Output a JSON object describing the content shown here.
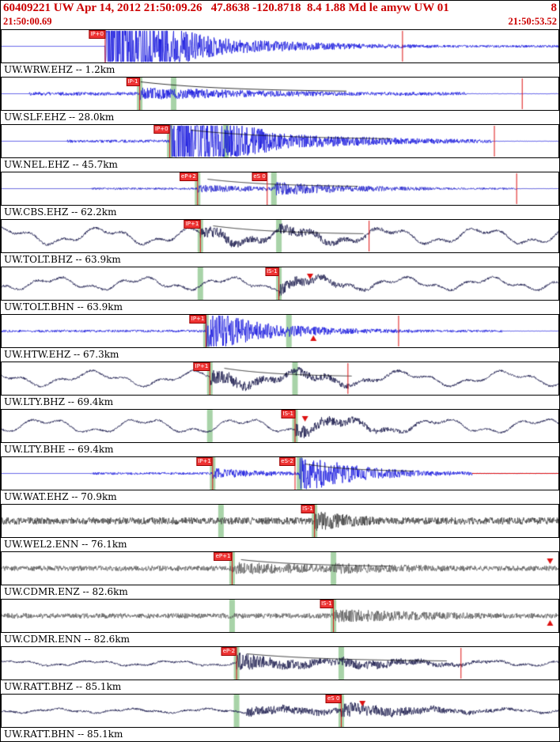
{
  "header": {
    "title": "60409221 UW Apr 14, 2012 21:50:09.26   47.8638 -120.8718  8.4 1.88 Md le amyw UW 01",
    "page": "8",
    "start_time": "21:50:00.69",
    "end_time": "21:50:53.52"
  },
  "colors": {
    "header_text": "#cc0000",
    "pick_red": "#dd1111",
    "flag_bg": "#ee3333",
    "band_green": "rgba(158,206,158,0.9)",
    "trace_blue": "#1515dd",
    "trace_navy": "#1b1b4d",
    "trace_gray": "#5a5a5a"
  },
  "traces": [
    {
      "label": "UW.WRW.EHZ -- 1.2km",
      "color": "#1515dd",
      "seed": 11,
      "wave": {
        "flat": 0.185,
        "noise": 1.5,
        "bursts": [
          {
            "x": 0.186,
            "a": 90,
            "d": 0.1
          },
          {
            "x": 0.2,
            "a": 25,
            "d": 0.22
          }
        ]
      },
      "picks": [
        {
          "x": 0.186,
          "label": "IP+0"
        }
      ],
      "red_vlines": [
        0.72
      ],
      "bands": []
    },
    {
      "label": "UW.SLF.EHZ -- 28.0km",
      "color": "#1515dd",
      "seed": 22,
      "wave": {
        "flat": 0.05,
        "noise": 2.2,
        "end": 0.835,
        "bursts": [
          {
            "x": 0.248,
            "a": 8,
            "d": 0.3
          },
          {
            "x": 0.31,
            "a": 7,
            "d": 0.3
          }
        ]
      },
      "picks": [
        {
          "x": 0.248,
          "label": "IP-1"
        }
      ],
      "red_vlines": [
        0.935
      ],
      "coda": {
        "from": 0.25,
        "to": 0.62,
        "amp": 13
      },
      "bands": [
        0.248,
        0.309
      ]
    },
    {
      "label": "UW.NEL.EHZ -- 45.7km",
      "color": "#1515dd",
      "seed": 33,
      "wave": {
        "flat": 0.118,
        "noise": 1.8,
        "end": 0.88,
        "bursts": [
          {
            "x": 0.302,
            "a": 70,
            "d": 0.11
          },
          {
            "x": 0.32,
            "a": 20,
            "d": 0.25
          }
        ]
      },
      "picks": [
        {
          "x": 0.302,
          "label": "IP+0"
        }
      ],
      "red_vlines": [
        0.885
      ],
      "coda": {
        "from": 0.34,
        "to": 0.7,
        "amp": 12
      },
      "bands": [
        0.302,
        0.403
      ]
    },
    {
      "label": "UW.CBS.EHZ -- 62.2km",
      "color": "#2020cc",
      "seed": 44,
      "wave": {
        "flat": 0.16,
        "noise": 1.2,
        "end": 0.925,
        "bursts": [
          {
            "x": 0.352,
            "a": 5,
            "d": 0.2
          },
          {
            "x": 0.49,
            "a": 9,
            "d": 0.18
          }
        ]
      },
      "picks": [
        {
          "x": 0.352,
          "label": "eP+2"
        },
        {
          "x": 0.477,
          "label": "eS 0"
        }
      ],
      "red_vlines": [
        0.925
      ],
      "coda": {
        "from": 0.37,
        "to": 0.64,
        "amp": 10
      },
      "bands": [
        0.352,
        0.489
      ]
    },
    {
      "label": "UW.TOLT.BHZ -- 63.9km",
      "color": "#1b1b4d",
      "seed": 55,
      "wave": {
        "flat": 0,
        "noise": 1.5,
        "lf": {
          "a": 8,
          "p": 120,
          "ph": 1.2
        },
        "bursts": [
          {
            "x": 0.357,
            "a": 9,
            "d": 0.12
          },
          {
            "x": 0.5,
            "a": 7,
            "d": 0.15
          }
        ]
      },
      "picks": [
        {
          "x": 0.357,
          "label": "IP+1"
        }
      ],
      "red_vlines": [
        0.66
      ],
      "coda": {
        "from": 0.38,
        "to": 0.65,
        "amp": 11
      },
      "bands": [
        0.357,
        0.498
      ]
    },
    {
      "label": "UW.TOLT.BHN -- 63.9km",
      "color": "#1b1b4d",
      "seed": 66,
      "wave": {
        "flat": 0,
        "noise": 1.4,
        "lf": {
          "a": 6,
          "p": 110,
          "ph": 4.0
        },
        "bursts": [
          {
            "x": 0.498,
            "a": 8,
            "d": 0.12
          }
        ]
      },
      "picks": [
        {
          "x": 0.498,
          "label": "IS-1"
        }
      ],
      "markers": [
        {
          "x": 0.554,
          "dir": "down"
        }
      ],
      "bands": [
        0.357,
        0.498
      ]
    },
    {
      "label": "UW.HTW.EHZ -- 67.3km",
      "color": "#1515dd",
      "seed": 77,
      "wave": {
        "flat": 0,
        "noise": 1.5,
        "end": 0.9,
        "bursts": [
          {
            "x": 0.367,
            "a": 30,
            "d": 0.1
          },
          {
            "x": 0.38,
            "a": 12,
            "d": 0.2
          },
          {
            "x": 0.516,
            "a": 8,
            "d": 0.12
          }
        ]
      },
      "picks": [
        {
          "x": 0.367,
          "label": "IP+1"
        }
      ],
      "red_vlines": [
        0.713
      ],
      "markers": [
        {
          "x": 0.56,
          "dir": "up"
        }
      ],
      "bands": [
        0.367,
        0.516
      ]
    },
    {
      "label": "UW.LTY.BHZ -- 69.4km",
      "color": "#1b1b4d",
      "seed": 88,
      "wave": {
        "flat": 0,
        "noise": 1.3,
        "lf": {
          "a": 7,
          "p": 130,
          "ph": 2.2
        },
        "bursts": [
          {
            "x": 0.374,
            "a": 10,
            "d": 0.13
          },
          {
            "x": 0.527,
            "a": 6,
            "d": 0.15
          }
        ]
      },
      "picks": [
        {
          "x": 0.374,
          "label": "IP+1"
        }
      ],
      "red_vlines": [
        0.622
      ],
      "coda": {
        "from": 0.4,
        "to": 0.63,
        "amp": 11
      },
      "bands": [
        0.374,
        0.527
      ]
    },
    {
      "label": "UW.LTY.BHE -- 69.4km",
      "color": "#1b1b4d",
      "seed": 99,
      "wave": {
        "flat": 0,
        "noise": 1.2,
        "lf": {
          "a": 7,
          "p": 125,
          "ph": 5.1
        },
        "bursts": [
          {
            "x": 0.527,
            "a": 9,
            "d": 0.15
          }
        ]
      },
      "picks": [
        {
          "x": 0.527,
          "label": "IS-1"
        }
      ],
      "markers": [
        {
          "x": 0.545,
          "dir": "down"
        }
      ],
      "bands": [
        0.374,
        0.527
      ]
    },
    {
      "label": "UW.WAT.EHZ -- 70.9km",
      "color": "#1515dd",
      "seed": 110,
      "wave": {
        "flat": 0.16,
        "noise": 1.5,
        "end": 0.845,
        "bursts": [
          {
            "x": 0.379,
            "a": 7,
            "d": 0.12
          },
          {
            "x": 0.535,
            "a": 26,
            "d": 0.11
          },
          {
            "x": 0.55,
            "a": 10,
            "d": 0.2
          }
        ]
      },
      "picks": [
        {
          "x": 0.379,
          "label": "IP+1"
        },
        {
          "x": 0.527,
          "label": "eS-2"
        }
      ],
      "red_hlines": [
        {
          "from": 0.845,
          "to": 1.0
        }
      ],
      "coda": {
        "from": 0.545,
        "to": 0.74,
        "amp": 10
      },
      "bands": [
        0.379,
        0.535
      ]
    },
    {
      "label": "UW.WEL2.ENN -- 76.1km",
      "color": "#3f3f3f",
      "seed": 121,
      "wave": {
        "flat": 0,
        "noise": 4.5,
        "bursts": [
          {
            "x": 0.562,
            "a": 13,
            "d": 0.12
          },
          {
            "x": 0.58,
            "a": 7,
            "d": 0.25
          }
        ]
      },
      "picks": [
        {
          "x": 0.562,
          "label": "IS-1"
        }
      ],
      "bands": [
        0.394,
        0.562
      ]
    },
    {
      "label": "UW.CDMR.ENZ -- 82.6km",
      "color": "#5c5c5c",
      "seed": 132,
      "wave": {
        "flat": 0,
        "noise": 3.2,
        "bursts": [
          {
            "x": 0.414,
            "a": 8,
            "d": 0.35
          },
          {
            "x": 0.6,
            "a": 7,
            "d": 0.3
          }
        ]
      },
      "picks": [
        {
          "x": 0.414,
          "label": "eP+1"
        }
      ],
      "markers": [
        {
          "x": 0.985,
          "dir": "down"
        }
      ],
      "coda": {
        "from": 0.43,
        "to": 0.7,
        "amp": 9
      },
      "bands": [
        0.414,
        0.596
      ]
    },
    {
      "label": "UW.CDMR.ENN -- 82.6km",
      "color": "#5c5c5c",
      "seed": 143,
      "wave": {
        "flat": 0,
        "noise": 3.2,
        "bursts": [
          {
            "x": 0.596,
            "a": 9,
            "d": 0.3
          }
        ]
      },
      "picks": [
        {
          "x": 0.596,
          "label": "IS-1"
        }
      ],
      "markers": [
        {
          "x": 0.985,
          "dir": "up"
        }
      ],
      "bands": [
        0.414,
        0.596
      ]
    },
    {
      "label": "UW.RATT.BHZ -- 85.1km",
      "color": "#1b1b4d",
      "seed": 154,
      "wave": {
        "flat": 0,
        "noise": 1.2,
        "lf": {
          "a": 2.5,
          "p": 100,
          "ph": 0.5
        },
        "bursts": [
          {
            "x": 0.422,
            "a": 12,
            "d": 0.1
          },
          {
            "x": 0.44,
            "a": 8,
            "d": 0.25
          },
          {
            "x": 0.61,
            "a": 7,
            "d": 0.2
          }
        ]
      },
      "picks": [
        {
          "x": 0.422,
          "label": "eP-2"
        }
      ],
      "red_vlines": [
        0.825
      ],
      "coda": {
        "from": 0.44,
        "to": 0.8,
        "amp": 10
      },
      "bands": [
        0.422,
        0.61
      ]
    },
    {
      "label": "UW.RATT.BHN -- 85.1km",
      "color": "#1b1b4d",
      "seed": 165,
      "wave": {
        "flat": 0,
        "noise": 1.2,
        "lf": {
          "a": 2,
          "p": 95,
          "ph": 3.3
        },
        "bursts": [
          {
            "x": 0.44,
            "a": 6,
            "d": 0.3
          },
          {
            "x": 0.61,
            "a": 10,
            "d": 0.18
          }
        ]
      },
      "picks": [
        {
          "x": 0.61,
          "label": "eS 0"
        }
      ],
      "markers": [
        {
          "x": 0.648,
          "dir": "down"
        }
      ],
      "bands": [
        0.422,
        0.61
      ]
    }
  ]
}
